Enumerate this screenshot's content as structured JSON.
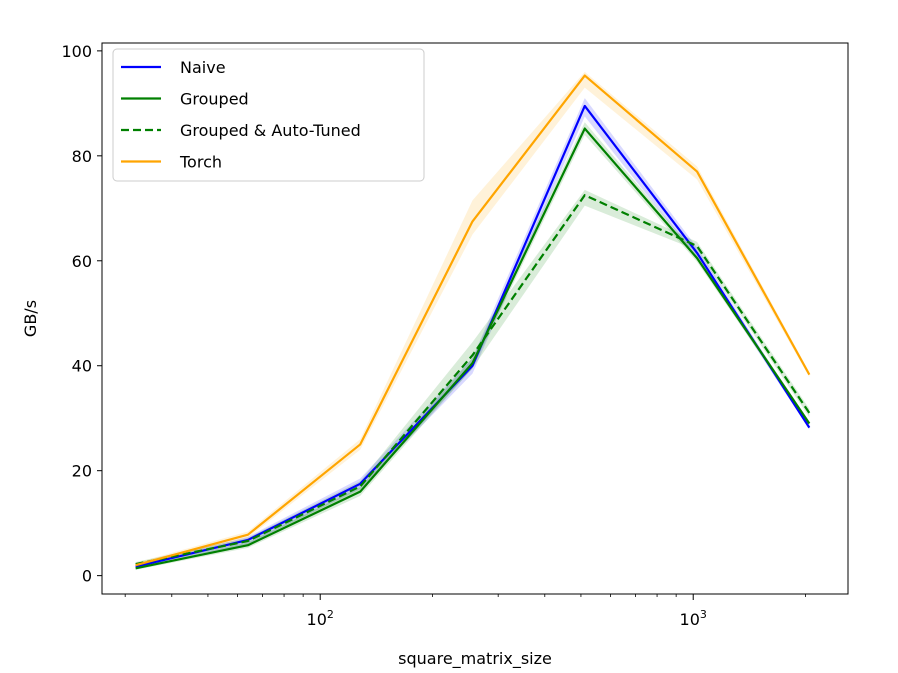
{
  "chart_data": {
    "type": "line",
    "xlabel": "square_matrix_size",
    "ylabel": "GB/s",
    "xscale": "log",
    "xlim": [
      26,
      2600
    ],
    "ylim": [
      -3.5,
      101.5
    ],
    "x_major_ticks": [
      {
        "value": 100,
        "base": "10",
        "exp": "2"
      },
      {
        "value": 1000,
        "base": "10",
        "exp": "3"
      }
    ],
    "x_minor_ticks": [
      30,
      40,
      50,
      60,
      70,
      80,
      90,
      200,
      300,
      400,
      500,
      600,
      700,
      800,
      900,
      2000
    ],
    "y_ticks": [
      0,
      20,
      40,
      60,
      80,
      100
    ],
    "grid": false,
    "legend_position": "top-left",
    "x": [
      32,
      64,
      128,
      256,
      512,
      1024,
      2048
    ],
    "series": [
      {
        "name": "Naive",
        "color": "#0000ff",
        "dash": "solid",
        "values": [
          1.7,
          6.8,
          17.5,
          40.0,
          89.5,
          61.5,
          28.2
        ],
        "band_low": [
          1.3,
          6.0,
          16.5,
          38.5,
          87.5,
          60.5,
          27.8
        ],
        "band_high": [
          2.1,
          7.4,
          18.5,
          41.5,
          91.0,
          62.5,
          28.6
        ]
      },
      {
        "name": "Grouped",
        "color": "#008000",
        "dash": "solid",
        "values": [
          1.4,
          5.8,
          16.0,
          40.5,
          85.2,
          60.5,
          29.0
        ],
        "band_low": [
          1.1,
          5.3,
          15.2,
          39.5,
          84.0,
          59.8,
          28.6
        ],
        "band_high": [
          1.7,
          6.3,
          16.8,
          41.5,
          86.4,
          61.2,
          29.4
        ]
      },
      {
        "name": "Grouped & Auto-Tuned",
        "color": "#008000",
        "dash": "dashed",
        "values": [
          2.2,
          6.6,
          17.0,
          42.0,
          72.5,
          62.8,
          31.0
        ],
        "band_low": [
          1.8,
          6.0,
          16.0,
          39.5,
          70.5,
          62.0,
          30.2
        ],
        "band_high": [
          2.6,
          7.2,
          18.0,
          44.5,
          73.5,
          63.6,
          31.8
        ]
      },
      {
        "name": "Torch",
        "color": "#ffa500",
        "dash": "solid",
        "values": [
          2.0,
          7.8,
          25.0,
          67.5,
          95.3,
          77.0,
          38.3
        ],
        "band_low": [
          1.6,
          7.2,
          24.0,
          65.0,
          93.0,
          75.5,
          37.8
        ],
        "band_high": [
          2.4,
          8.4,
          26.0,
          71.5,
          96.0,
          78.0,
          38.8
        ]
      }
    ]
  }
}
